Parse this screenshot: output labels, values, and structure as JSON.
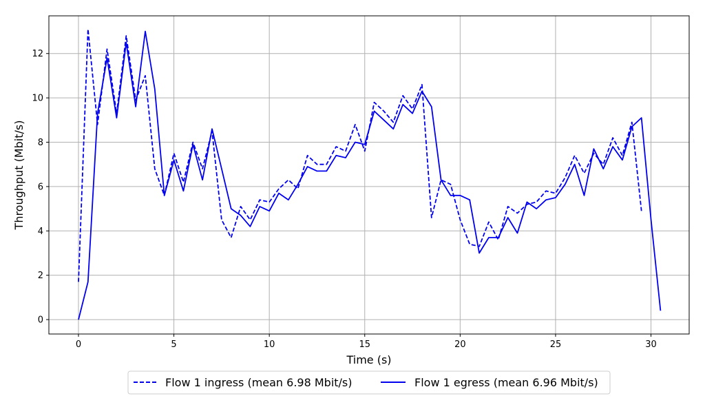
{
  "chart_data": {
    "type": "line",
    "xlabel": "Time (s)",
    "ylabel": "Throughput (Mbit/s)",
    "xlim": [
      -1.55,
      32.0
    ],
    "ylim": [
      -0.65,
      13.7
    ],
    "xticks": [
      0,
      5,
      10,
      15,
      20,
      25,
      30
    ],
    "yticks": [
      0,
      2,
      4,
      6,
      8,
      10,
      12
    ],
    "grid": true,
    "legend_position": "bottom-center-outside",
    "series": [
      {
        "name": "Flow 1 ingress (mean 6.98 Mbit/s)",
        "style": "dashed",
        "color": "#0000ee",
        "x": [
          0,
          0.5,
          1,
          1.5,
          2,
          2.5,
          3,
          3.5,
          4,
          4.5,
          5,
          5.5,
          6,
          6.5,
          7,
          7.5,
          8,
          8.5,
          9,
          9.5,
          10,
          10.5,
          11,
          11.5,
          12,
          12.5,
          13,
          13.5,
          14,
          14.5,
          15,
          15.5,
          16,
          16.5,
          17,
          17.5,
          18,
          18.5,
          19,
          19.5,
          20,
          20.5,
          21,
          21.5,
          22,
          22.5,
          23,
          23.5,
          24,
          24.5,
          25,
          25.5,
          26,
          26.5,
          27,
          27.5,
          28,
          28.5,
          29,
          29.5
        ],
        "y": [
          1.7,
          13.1,
          8.8,
          12.2,
          9.3,
          12.8,
          9.9,
          11.0,
          6.8,
          5.6,
          7.5,
          6.2,
          8.0,
          6.8,
          8.5,
          4.5,
          3.7,
          5.1,
          4.5,
          5.4,
          5.3,
          5.9,
          6.3,
          5.9,
          7.4,
          7.0,
          7.0,
          7.8,
          7.6,
          8.8,
          7.6,
          9.8,
          9.4,
          8.9,
          10.1,
          9.5,
          10.6,
          4.6,
          6.3,
          6.1,
          4.5,
          3.4,
          3.3,
          4.4,
          3.6,
          5.1,
          4.8,
          5.2,
          5.3,
          5.8,
          5.7,
          6.4,
          7.4,
          6.6,
          7.5,
          7.0,
          8.2,
          7.4,
          8.9,
          4.9
        ]
      },
      {
        "name": "Flow 1 egress (mean 6.96 Mbit/s)",
        "style": "solid",
        "color": "#0000ee",
        "x": [
          0,
          0.5,
          1,
          1.5,
          2,
          2.5,
          3,
          3.5,
          4,
          4.5,
          5,
          5.5,
          6,
          6.5,
          7,
          7.5,
          8,
          8.5,
          9,
          9.5,
          10,
          10.5,
          11,
          11.5,
          12,
          12.5,
          13,
          13.5,
          14,
          14.5,
          15,
          15.5,
          16,
          16.5,
          17,
          17.5,
          18,
          18.5,
          19,
          19.5,
          20,
          20.5,
          21,
          21.5,
          22,
          22.5,
          23,
          23.5,
          24,
          24.5,
          25,
          25.5,
          26,
          26.5,
          27,
          27.5,
          28,
          28.5,
          29,
          29.5,
          30,
          30.5
        ],
        "y": [
          0.0,
          1.7,
          9.3,
          11.8,
          9.1,
          12.5,
          9.6,
          13.0,
          10.4,
          5.6,
          7.2,
          5.8,
          7.9,
          6.3,
          8.6,
          6.8,
          5.0,
          4.7,
          4.2,
          5.1,
          4.9,
          5.7,
          5.4,
          6.1,
          6.9,
          6.7,
          6.7,
          7.4,
          7.3,
          8.0,
          7.9,
          9.4,
          9.0,
          8.6,
          9.7,
          9.3,
          10.3,
          9.6,
          6.3,
          5.6,
          5.6,
          5.4,
          3.0,
          3.7,
          3.7,
          4.6,
          3.9,
          5.3,
          5.0,
          5.4,
          5.5,
          6.1,
          7.0,
          5.6,
          7.7,
          6.8,
          7.8,
          7.2,
          8.7,
          9.1,
          4.5,
          0.4
        ]
      }
    ]
  }
}
